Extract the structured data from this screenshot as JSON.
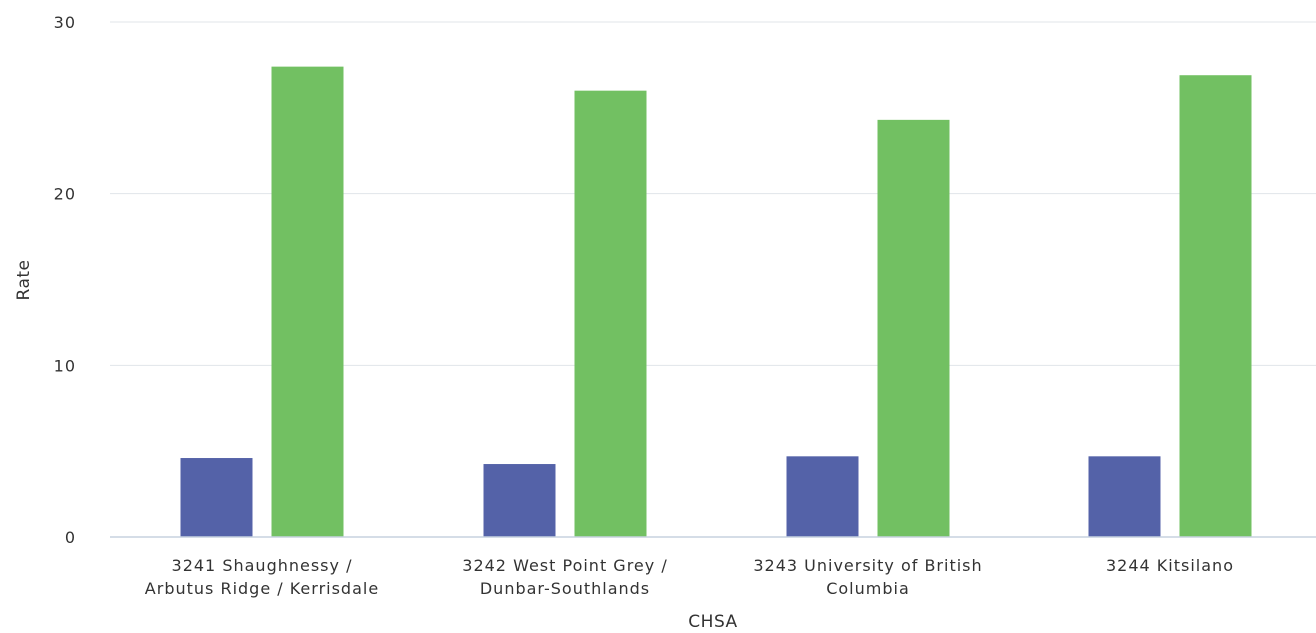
{
  "chart_data": {
    "type": "bar",
    "title": "",
    "xlabel": "CHSA",
    "ylabel": "Rate",
    "ylim": [
      0,
      30
    ],
    "yticks": [
      0,
      10,
      20,
      30
    ],
    "grid": true,
    "legend": "none",
    "categories": [
      [
        "3241 Shaughnessy /",
        "Arbutus Ridge / Kerrisdale"
      ],
      [
        "3242 West Point Grey /",
        "Dunbar-Southlands"
      ],
      [
        "3243 University of British",
        "Columbia"
      ],
      [
        "3244 Kitsilano"
      ]
    ],
    "series": [
      {
        "color": "#5462a8",
        "values": [
          4.6,
          4.25,
          4.7,
          4.7
        ]
      },
      {
        "color": "#72c062",
        "values": [
          27.4,
          26.0,
          24.3,
          26.9
        ]
      }
    ]
  }
}
